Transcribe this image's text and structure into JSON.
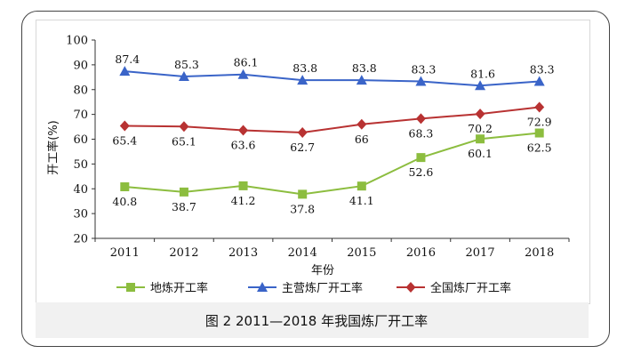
{
  "caption": "图 2 2011—2018 年我国炼厂开工率",
  "chart_data": {
    "type": "line",
    "title": "",
    "xlabel": "年份",
    "ylabel": "开工率(%)",
    "ylim": [
      20,
      100
    ],
    "yticks": [
      20,
      30,
      40,
      50,
      60,
      70,
      80,
      90,
      100
    ],
    "grid": false,
    "legend_position": "bottom",
    "categories": [
      "2011",
      "2012",
      "2013",
      "2014",
      "2015",
      "2016",
      "2017",
      "2018"
    ],
    "series": [
      {
        "name": "地炼开工率",
        "color": "#8cbd3f",
        "marker": "square",
        "values": [
          40.8,
          38.7,
          41.2,
          37.8,
          41.1,
          52.6,
          60.1,
          62.5
        ]
      },
      {
        "name": "主营炼厂开工率",
        "color": "#3a64c8",
        "marker": "triangle",
        "values": [
          87.4,
          85.3,
          86.1,
          83.8,
          83.8,
          83.3,
          81.6,
          83.3
        ]
      },
      {
        "name": "全国炼厂开工率",
        "color": "#b83232",
        "marker": "diamond",
        "values": [
          65.4,
          65.1,
          63.6,
          62.7,
          66,
          68.3,
          70.2,
          72.9
        ]
      }
    ]
  }
}
